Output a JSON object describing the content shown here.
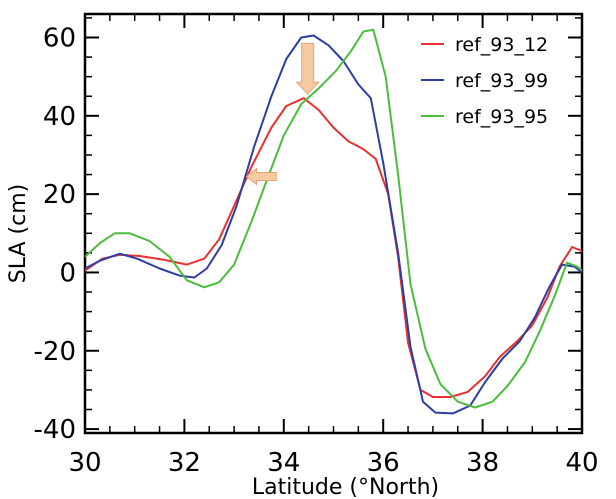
{
  "chart_data": {
    "type": "line",
    "title": "",
    "xlabel": "Latitude (°North)",
    "ylabel": "SLA (cm)",
    "xlim": [
      30,
      40
    ],
    "ylim": [
      -41,
      66
    ],
    "xticks": [
      "30",
      "32",
      "34",
      "36",
      "38",
      "40"
    ],
    "yticks": [
      "-40",
      "-20",
      "0",
      "20",
      "40",
      "60"
    ],
    "grid": false,
    "legend_position": "top-right",
    "series": [
      {
        "name": "ref_93_12",
        "color": "#e8302e",
        "points": [
          [
            30.0,
            0.5
          ],
          [
            30.35,
            3.5
          ],
          [
            30.7,
            4.5
          ],
          [
            31.1,
            4.2
          ],
          [
            31.6,
            3.2
          ],
          [
            32.05,
            2.0
          ],
          [
            32.4,
            3.5
          ],
          [
            32.7,
            8.5
          ],
          [
            33.0,
            17.0
          ],
          [
            33.35,
            27.0
          ],
          [
            33.75,
            37.0
          ],
          [
            34.05,
            42.5
          ],
          [
            34.4,
            44.5
          ],
          [
            34.7,
            41.5
          ],
          [
            35.0,
            37.0
          ],
          [
            35.3,
            33.5
          ],
          [
            35.6,
            31.5
          ],
          [
            35.85,
            29.0
          ],
          [
            36.1,
            20.0
          ],
          [
            36.3,
            4.0
          ],
          [
            36.5,
            -18.0
          ],
          [
            36.75,
            -30.0
          ],
          [
            37.0,
            -31.8
          ],
          [
            37.35,
            -31.8
          ],
          [
            37.7,
            -30.5
          ],
          [
            38.05,
            -26.5
          ],
          [
            38.35,
            -21.5
          ],
          [
            38.7,
            -17.5
          ],
          [
            39.0,
            -13.5
          ],
          [
            39.3,
            -6.5
          ],
          [
            39.55,
            1.5
          ],
          [
            39.8,
            6.5
          ],
          [
            40.0,
            5.5
          ]
        ]
      },
      {
        "name": "ref_93_99",
        "color": "#2c3ea3",
        "points": [
          [
            30.0,
            1.0
          ],
          [
            30.3,
            3.0
          ],
          [
            30.7,
            4.8
          ],
          [
            31.05,
            3.5
          ],
          [
            31.5,
            1.0
          ],
          [
            31.9,
            -0.8
          ],
          [
            32.2,
            -1.3
          ],
          [
            32.45,
            1.0
          ],
          [
            32.75,
            7.0
          ],
          [
            33.05,
            17.0
          ],
          [
            33.4,
            32.0
          ],
          [
            33.75,
            45.0
          ],
          [
            34.05,
            54.5
          ],
          [
            34.35,
            60.0
          ],
          [
            34.6,
            60.5
          ],
          [
            34.9,
            58.0
          ],
          [
            35.2,
            54.0
          ],
          [
            35.5,
            48.0
          ],
          [
            35.75,
            44.5
          ],
          [
            36.0,
            28.0
          ],
          [
            36.3,
            5.0
          ],
          [
            36.55,
            -19.0
          ],
          [
            36.8,
            -33.0
          ],
          [
            37.05,
            -35.8
          ],
          [
            37.4,
            -36.0
          ],
          [
            37.75,
            -34.0
          ],
          [
            38.05,
            -28.0
          ],
          [
            38.4,
            -22.0
          ],
          [
            38.75,
            -17.5
          ],
          [
            39.05,
            -11.5
          ],
          [
            39.35,
            -3.5
          ],
          [
            39.6,
            2.0
          ],
          [
            39.85,
            1.5
          ],
          [
            40.0,
            0.0
          ]
        ]
      },
      {
        "name": "ref_93_95",
        "color": "#4bbd3c",
        "points": [
          [
            30.0,
            4.0
          ],
          [
            30.3,
            7.5
          ],
          [
            30.6,
            10.0
          ],
          [
            30.9,
            10.0
          ],
          [
            31.3,
            8.0
          ],
          [
            31.7,
            4.0
          ],
          [
            32.05,
            -2.0
          ],
          [
            32.4,
            -3.8
          ],
          [
            32.7,
            -2.5
          ],
          [
            33.0,
            2.0
          ],
          [
            33.35,
            13.0
          ],
          [
            33.7,
            25.0
          ],
          [
            34.0,
            35.0
          ],
          [
            34.35,
            43.0
          ],
          [
            34.7,
            47.0
          ],
          [
            35.05,
            51.5
          ],
          [
            35.35,
            56.5
          ],
          [
            35.6,
            61.5
          ],
          [
            35.8,
            62.0
          ],
          [
            36.05,
            50.0
          ],
          [
            36.3,
            25.0
          ],
          [
            36.55,
            -3.0
          ],
          [
            36.85,
            -19.5
          ],
          [
            37.15,
            -28.5
          ],
          [
            37.5,
            -33.0
          ],
          [
            37.85,
            -34.5
          ],
          [
            38.2,
            -33.0
          ],
          [
            38.5,
            -29.0
          ],
          [
            38.85,
            -23.0
          ],
          [
            39.15,
            -15.0
          ],
          [
            39.45,
            -6.0
          ],
          [
            39.7,
            2.5
          ],
          [
            39.9,
            1.5
          ],
          [
            40.0,
            0.5
          ]
        ]
      }
    ],
    "annotations": [
      {
        "type": "arrow",
        "direction": "down",
        "x": 34.48,
        "y_from": 58.5,
        "y_to": 45.5,
        "color": "#f5c9a2"
      },
      {
        "type": "arrow",
        "direction": "left",
        "y": 24.5,
        "x_from": 33.85,
        "x_to": 33.25,
        "color": "#f5c9a2"
      }
    ]
  }
}
